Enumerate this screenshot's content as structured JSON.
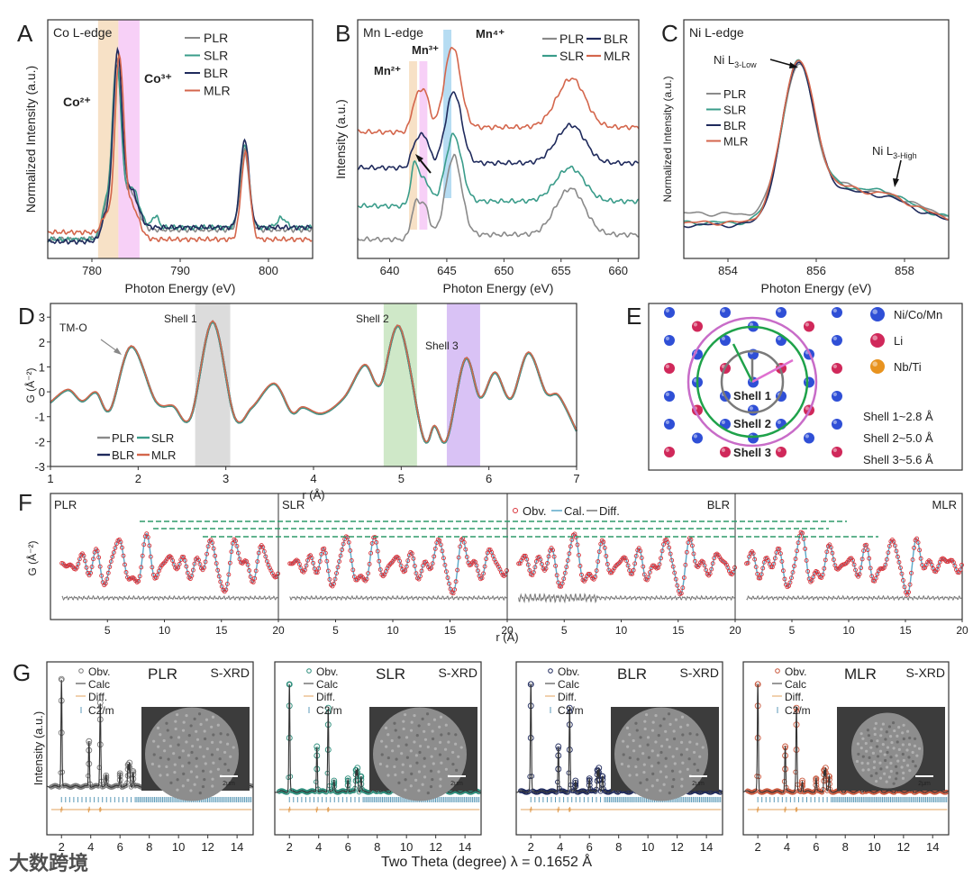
{
  "panel_letters": [
    "A",
    "B",
    "C",
    "D",
    "E",
    "F",
    "G"
  ],
  "watermark": "大数跨境",
  "chart_data": [
    {
      "panel": "A",
      "type": "line",
      "title": "Co L-edge",
      "xlabel": "Photon Energy (eV)",
      "ylabel": "Normalized Intensity (a.u.)",
      "xlim": [
        775,
        805
      ],
      "ylim": [
        0,
        1
      ],
      "xticks": [
        780,
        790,
        800
      ],
      "legend": [
        "PLR",
        "SLR",
        "BLR",
        "MLR"
      ],
      "legend_position": "top-right",
      "bands": [
        {
          "label": "Co²⁺",
          "range": [
            780.7,
            783.0
          ],
          "color": "#f6dcbc",
          "label_color": "#e5c28f"
        },
        {
          "label": "Co³⁺",
          "range": [
            783.0,
            785.4
          ],
          "color": "#f6c8f6",
          "label_color": "#9a2aa6"
        }
      ],
      "series": [
        {
          "name": "PLR",
          "color": "#8a8a8a",
          "baseline": 0.08,
          "step": [
            782,
            0.04
          ],
          "peaks": [
            [
              781.6,
              0.1,
              0.5
            ],
            [
              782.8,
              0.7,
              0.5
            ],
            [
              784.4,
              0.16,
              0.8
            ],
            [
              797.3,
              0.33,
              0.5
            ]
          ]
        },
        {
          "name": "SLR",
          "color": "#3a9c8a",
          "baseline": 0.08,
          "step": [
            782,
            0.05
          ],
          "peaks": [
            [
              781.5,
              0.12,
              0.45
            ],
            [
              782.8,
              0.68,
              0.5
            ],
            [
              784.5,
              0.17,
              0.8
            ],
            [
              787.2,
              0.05,
              0.35
            ],
            [
              797.3,
              0.35,
              0.5
            ],
            [
              801.5,
              0.04,
              0.5
            ]
          ]
        },
        {
          "name": "BLR",
          "color": "#1f2a5c",
          "baseline": 0.07,
          "step": [
            782,
            0.06
          ],
          "peaks": [
            [
              781.6,
              0.09,
              0.5
            ],
            [
              782.9,
              0.72,
              0.5
            ],
            [
              784.4,
              0.16,
              0.8
            ],
            [
              797.3,
              0.37,
              0.5
            ]
          ]
        },
        {
          "name": "MLR",
          "color": "#d4664c",
          "baseline": 0.11,
          "step": [
            782,
            -0.03
          ],
          "peaks": [
            [
              781.6,
              0.08,
              0.5
            ],
            [
              783.1,
              0.74,
              0.5
            ],
            [
              784.5,
              0.14,
              0.8
            ],
            [
              797.4,
              0.36,
              0.5
            ]
          ]
        }
      ]
    },
    {
      "panel": "B",
      "type": "line",
      "title": "Mn L-edge",
      "xlabel": "Photon Energy (eV)",
      "ylabel": "Intensity (a.u.)",
      "xlim": [
        637.2,
        661.8
      ],
      "ylim": [
        0,
        1
      ],
      "xticks": [
        640,
        645,
        650,
        655,
        660
      ],
      "legend": [
        "PLR",
        "BLR",
        "SLR",
        "MLR"
      ],
      "legend_position": "top-right",
      "bands": [
        {
          "label": "Mn²⁺",
          "range": [
            641.7,
            642.4
          ],
          "color": "#f6dcbc",
          "label_color": "#e5c28f"
        },
        {
          "label": "Mn³⁺",
          "range": [
            642.6,
            643.3
          ],
          "color": "#f6c8f6",
          "label_color": "#9a2aa6"
        },
        {
          "label": "Mn⁴⁺",
          "range": [
            644.7,
            645.4
          ],
          "color": "#a9d6f0",
          "label_color": "#2a9fd6"
        }
      ],
      "series": [
        {
          "name": "PLR",
          "color": "#8a8a8a",
          "baseline": 0.08,
          "step": [
            644,
            0.02
          ],
          "peaks": [
            [
              642.2,
              0.12,
              0.35
            ],
            [
              643.0,
              0.14,
              0.45
            ],
            [
              645.6,
              0.33,
              0.7
            ],
            [
              655.0,
              0.08,
              1.1
            ],
            [
              656.2,
              0.14,
              1.1
            ]
          ]
        },
        {
          "name": "SLR",
          "color": "#3a9c8a",
          "baseline": 0.22,
          "step": [
            644,
            0.02
          ],
          "peaks": [
            [
              642.2,
              0.17,
              0.35
            ],
            [
              643.1,
              0.1,
              0.45
            ],
            [
              645.6,
              0.28,
              0.7
            ],
            [
              655.0,
              0.06,
              1.1
            ],
            [
              656.2,
              0.1,
              1.1
            ]
          ]
        },
        {
          "name": "BLR",
          "color": "#1f2a5c",
          "baseline": 0.38,
          "step": [
            644,
            0.02
          ],
          "peaks": [
            [
              642.2,
              0.08,
              0.35
            ],
            [
              643.0,
              0.13,
              0.45
            ],
            [
              645.6,
              0.3,
              0.7
            ],
            [
              655.0,
              0.06,
              1.1
            ],
            [
              656.2,
              0.12,
              1.1
            ]
          ]
        },
        {
          "name": "MLR",
          "color": "#d4664c",
          "baseline": 0.53,
          "step": [
            644,
            0.02
          ],
          "peaks": [
            [
              642.2,
              0.1,
              0.35
            ],
            [
              643.0,
              0.17,
              0.45
            ],
            [
              645.5,
              0.34,
              0.7
            ],
            [
              655.0,
              0.07,
              1.1
            ],
            [
              656.2,
              0.16,
              1.1
            ]
          ]
        }
      ]
    },
    {
      "panel": "C",
      "type": "line",
      "title": "Ni L-edge",
      "xlabel": "Photon Energy (eV)",
      "ylabel": "Normalized Intensity (a.u.)",
      "xlim": [
        853,
        859
      ],
      "ylim": [
        0,
        1
      ],
      "xticks": [
        854,
        856,
        858
      ],
      "legend": [
        "PLR",
        "SLR",
        "BLR",
        "MLR"
      ],
      "legend_position": "top-left",
      "annotations": [
        {
          "text": "Ni L",
          "sub": "3-Low",
          "x": 855.6
        },
        {
          "text": "Ni L",
          "sub": "3-High",
          "x": 857.45
        }
      ],
      "series": [
        {
          "name": "PLR",
          "color": "#8a8a8a",
          "baseline": 0.19,
          "step": [
            855.1,
            -0.03
          ],
          "peaks": [
            [
              855.6,
              0.64,
              0.37
            ],
            [
              856.6,
              0.12,
              0.4
            ],
            [
              857.45,
              0.08,
              0.45
            ],
            [
              858.2,
              0.05,
              0.6
            ]
          ]
        },
        {
          "name": "SLR",
          "color": "#3a9c8a",
          "baseline": 0.15,
          "step": [
            855.1,
            0.0
          ],
          "peaks": [
            [
              855.6,
              0.67,
              0.38
            ],
            [
              856.6,
              0.12,
              0.4
            ],
            [
              857.45,
              0.1,
              0.45
            ],
            [
              858.2,
              0.05,
              0.6
            ]
          ]
        },
        {
          "name": "BLR",
          "color": "#1f2a5c",
          "baseline": 0.14,
          "step": [
            855.1,
            0.0
          ],
          "peaks": [
            [
              855.6,
              0.68,
              0.38
            ],
            [
              856.6,
              0.12,
              0.4
            ],
            [
              857.45,
              0.09,
              0.45
            ],
            [
              858.2,
              0.05,
              0.6
            ]
          ]
        },
        {
          "name": "MLR",
          "color": "#d4664c",
          "baseline": 0.15,
          "step": [
            855.1,
            0.0
          ],
          "peaks": [
            [
              855.6,
              0.68,
              0.38
            ],
            [
              856.6,
              0.12,
              0.4
            ],
            [
              857.45,
              0.09,
              0.45
            ],
            [
              858.2,
              0.05,
              0.6
            ]
          ]
        }
      ]
    },
    {
      "panel": "D",
      "type": "line",
      "xlabel": "r (Å)",
      "ylabel": "G (Å⁻²)",
      "xlim": [
        1,
        7
      ],
      "ylim": [
        -3,
        3.55
      ],
      "xticks": [
        1,
        2,
        3,
        4,
        5,
        6,
        7
      ],
      "yticks": [
        -3,
        -2,
        -1,
        0,
        1,
        2,
        3
      ],
      "legend": [
        "PLR",
        "SLR",
        "BLR",
        "MLR"
      ],
      "legend_position": "bottom-left",
      "annotation": "TM-O",
      "bands": [
        {
          "label": "Shell 1",
          "range": [
            2.65,
            3.05
          ],
          "color": "#dcdcdc"
        },
        {
          "label": "Shell 2",
          "range": [
            4.8,
            5.18
          ],
          "color": "#cfe8c8"
        },
        {
          "label": "Shell 3",
          "range": [
            5.52,
            5.9
          ],
          "color": "#d9c2f5"
        }
      ],
      "series_colors": {
        "PLR": "#8a8a8a",
        "SLR": "#3a9c8a",
        "BLR": "#1f2a5c",
        "MLR": "#d4664c"
      },
      "curve": [
        [
          1,
          -0.4
        ],
        [
          1.2,
          0.1
        ],
        [
          1.36,
          -0.35
        ],
        [
          1.52,
          0.0
        ],
        [
          1.68,
          -0.7
        ],
        [
          1.92,
          1.85
        ],
        [
          2.2,
          -0.35
        ],
        [
          2.4,
          -0.55
        ],
        [
          2.6,
          -1.0
        ],
        [
          2.85,
          2.85
        ],
        [
          3.1,
          -1.0
        ],
        [
          3.3,
          -0.6
        ],
        [
          3.55,
          0.35
        ],
        [
          3.75,
          -0.8
        ],
        [
          3.88,
          -0.6
        ],
        [
          4.1,
          -0.85
        ],
        [
          4.35,
          -0.2
        ],
        [
          4.58,
          1.1
        ],
        [
          4.76,
          0.3
        ],
        [
          4.98,
          2.65
        ],
        [
          5.25,
          -1.8
        ],
        [
          5.38,
          -1.35
        ],
        [
          5.52,
          -1.9
        ],
        [
          5.73,
          1.35
        ],
        [
          5.9,
          -0.2
        ],
        [
          6.07,
          0.8
        ],
        [
          6.25,
          -0.25
        ],
        [
          6.45,
          1.6
        ],
        [
          6.65,
          0.0
        ],
        [
          6.8,
          -0.15
        ],
        [
          7,
          -1.55
        ]
      ]
    },
    {
      "panel": "E",
      "type": "diagram",
      "legend": [
        {
          "label": "Ni/Co/Mn",
          "color": "#2f4fd6"
        },
        {
          "label": "Li",
          "color": "#d0285a"
        },
        {
          "label": "Nb/Ti",
          "color": "#e8931f"
        }
      ],
      "shells": [
        "Shell 1",
        "Shell 2",
        "Shell 3"
      ],
      "shell_distances": [
        "Shell 1~2.8 Å",
        "Shell 2~5.0 Å",
        "Shell 3~5.6 Å"
      ]
    },
    {
      "panel": "F",
      "type": "line",
      "xlabel": "r (Å)",
      "ylabel": "G (Å⁻²)",
      "xlim": [
        0,
        20
      ],
      "xticks": [
        5,
        10,
        15,
        20
      ],
      "subpanels": [
        "PLR",
        "SLR",
        "BLR",
        "MLR"
      ],
      "legend": [
        "Obv.",
        "Cal.",
        "Diff."
      ],
      "colors": {
        "obs": "#d9333a",
        "cal": "#5aa8c8",
        "diff": "#777777",
        "guide": "#2e9a6a"
      }
    },
    {
      "panel": "G",
      "type": "line",
      "xlabel": "Two Theta (degree) λ = 0.1652 Å",
      "ylabel": "Intensity (a.u.)",
      "xlim": [
        1,
        15.1
      ],
      "xticks": [
        2,
        4,
        6,
        8,
        10,
        12,
        14
      ],
      "technique": "S-XRD",
      "legend": [
        "Obv.",
        "Calc",
        "Diff.",
        "C2/m"
      ],
      "scale_bar": "2μm",
      "peaks": [
        [
          2.0,
          1.0
        ],
        [
          3.88,
          0.42
        ],
        [
          4.65,
          0.78
        ],
        [
          5.05,
          0.1
        ],
        [
          6.0,
          0.12
        ],
        [
          6.55,
          0.2
        ],
        [
          6.65,
          0.22
        ],
        [
          6.9,
          0.14
        ],
        [
          7.7,
          0.06
        ],
        [
          8.1,
          0.08
        ],
        [
          9.0,
          0.04
        ],
        [
          9.3,
          0.04
        ],
        [
          10.4,
          0.04
        ],
        [
          11.5,
          0.03
        ],
        [
          12.6,
          0.02
        ]
      ],
      "subpanels": [
        {
          "name": "PLR",
          "obs_color": "#7a7a7a"
        },
        {
          "name": "SLR",
          "obs_color": "#2a8c7a"
        },
        {
          "name": "BLR",
          "obs_color": "#1f2a5c"
        },
        {
          "name": "MLR",
          "obs_color": "#c8553a"
        }
      ],
      "colors": {
        "calc": "#333333",
        "diff": "#e3a35c",
        "bragg": "#5b9ab8"
      }
    }
  ]
}
